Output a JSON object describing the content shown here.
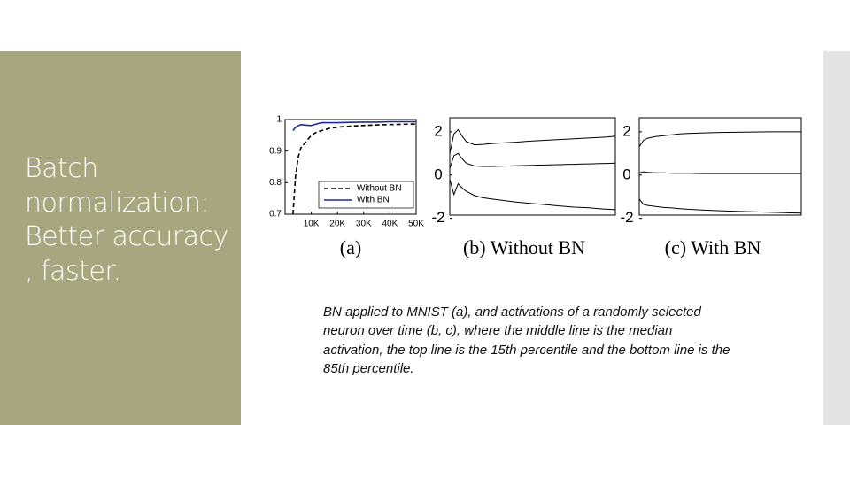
{
  "slide": {
    "title": "Batch normalization: Better accuracy , faster."
  },
  "figure": {
    "panels": [
      {
        "type": "line",
        "caption": "(a)",
        "xlim": [
          0,
          50000
        ],
        "xticks": [
          {
            "value": 10000,
            "label": "10K"
          },
          {
            "value": 20000,
            "label": "20K"
          },
          {
            "value": 30000,
            "label": "30K"
          },
          {
            "value": 40000,
            "label": "40K"
          },
          {
            "value": 50000,
            "label": "50K"
          }
        ],
        "ylim": [
          0.7,
          1
        ],
        "yticks": [
          0.7,
          0.8,
          0.9,
          1
        ],
        "x": [
          3000,
          4000,
          5000,
          6000,
          8000,
          10000,
          12000,
          14000,
          17000,
          20000,
          25000,
          30000,
          35000,
          40000,
          45000,
          50000
        ],
        "series": [
          {
            "name": "Without BN",
            "color": "#000000",
            "dashed": true,
            "values": [
              0.7,
              0.82,
              0.88,
              0.91,
              0.93,
              0.95,
              0.96,
              0.965,
              0.972,
              0.976,
              0.979,
              0.981,
              0.983,
              0.984,
              0.985,
              0.986
            ]
          },
          {
            "name": "With BN",
            "color": "#1f2a9c",
            "dashed": false,
            "values": [
              0.965,
              0.975,
              0.98,
              0.984,
              0.982,
              0.981,
              0.986,
              0.99,
              0.99,
              0.99,
              0.991,
              0.992,
              0.992,
              0.993,
              0.993,
              0.993
            ]
          }
        ]
      },
      {
        "type": "line",
        "caption": "(b) Without BN",
        "ylim": [
          -1.85,
          2.65
        ],
        "yticks": [
          -2,
          0,
          2
        ],
        "x": [
          0,
          0.5,
          1,
          1.5,
          2,
          3,
          4,
          5,
          6,
          7,
          8,
          9,
          10,
          11,
          12,
          13,
          14,
          15,
          16,
          17,
          18,
          19,
          20
        ],
        "xlim": [
          0,
          20
        ],
        "series": [
          {
            "color": "#000000",
            "values": [
              1.0,
              1.9,
              2.1,
              1.8,
              1.55,
              1.4,
              1.42,
              1.45,
              1.48,
              1.5,
              1.52,
              1.55,
              1.58,
              1.6,
              1.62,
              1.64,
              1.66,
              1.68,
              1.7,
              1.72,
              1.74,
              1.76,
              1.8
            ]
          },
          {
            "color": "#000000",
            "values": [
              0.3,
              0.9,
              1.0,
              0.75,
              0.55,
              0.42,
              0.4,
              0.4,
              0.41,
              0.42,
              0.43,
              0.44,
              0.45,
              0.46,
              0.47,
              0.48,
              0.49,
              0.5,
              0.51,
              0.52,
              0.53,
              0.54,
              0.55
            ]
          },
          {
            "color": "#000000",
            "values": [
              -0.2,
              -0.9,
              -0.4,
              -0.6,
              -0.75,
              -0.95,
              -1.05,
              -1.1,
              -1.15,
              -1.2,
              -1.25,
              -1.28,
              -1.32,
              -1.35,
              -1.38,
              -1.42,
              -1.45,
              -1.48,
              -1.5,
              -1.52,
              -1.55,
              -1.58,
              -1.6
            ]
          }
        ]
      },
      {
        "type": "line",
        "caption": "(c) With BN",
        "ylim": [
          -1.85,
          2.65
        ],
        "yticks": [
          -2,
          0,
          2
        ],
        "x": [
          0,
          0.5,
          1,
          2,
          3,
          4,
          5,
          6,
          8,
          10,
          12,
          14,
          16,
          18,
          20
        ],
        "xlim": [
          0,
          20
        ],
        "series": [
          {
            "color": "#000000",
            "values": [
              1.3,
              1.6,
              1.7,
              1.78,
              1.82,
              1.86,
              1.9,
              1.92,
              1.95,
              1.97,
              1.98,
              1.99,
              2.0,
              2.0,
              2.0
            ]
          },
          {
            "color": "#000000",
            "values": [
              0.1,
              0.15,
              0.12,
              0.1,
              0.1,
              0.08,
              0.08,
              0.08,
              0.07,
              0.07,
              0.07,
              0.07,
              0.07,
              0.07,
              0.07
            ]
          },
          {
            "color": "#000000",
            "values": [
              -1.1,
              -1.35,
              -1.4,
              -1.45,
              -1.5,
              -1.52,
              -1.55,
              -1.58,
              -1.62,
              -1.65,
              -1.68,
              -1.7,
              -1.72,
              -1.74,
              -1.76
            ]
          }
        ]
      }
    ],
    "caption": "BN applied to MNIST (a), and activations of a randomly selected neuron over time (b, c), where the middle line is the median activation, the top line is the 15th percentile and the bottom line is the 85th percentile."
  }
}
